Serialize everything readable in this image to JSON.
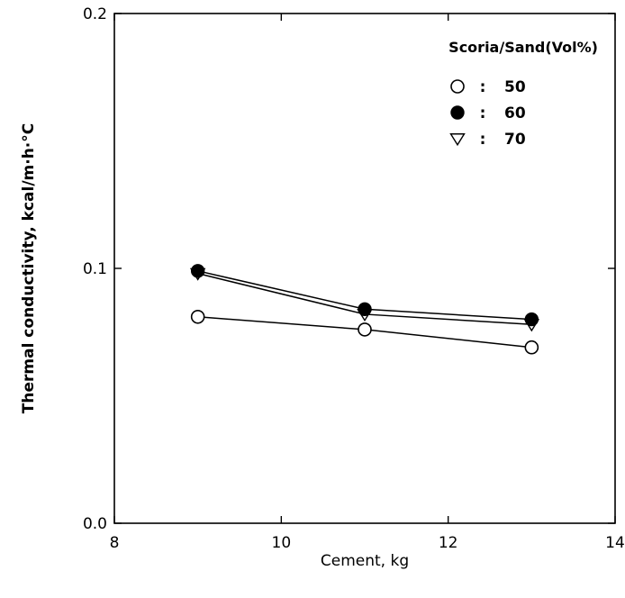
{
  "chart_data": {
    "type": "line",
    "xlabel": "Cement, kg",
    "ylabel": "Thermal conductivity, kcal/m·h·°C",
    "xlim": [
      8,
      14
    ],
    "ylim": [
      0.0,
      0.2
    ],
    "xticks": [
      8,
      10,
      12,
      14
    ],
    "yticks": [
      0.0,
      0.1,
      0.2
    ],
    "xtick_labels": [
      "8",
      "10",
      "12",
      "14"
    ],
    "ytick_labels": [
      "0.0",
      "0.1",
      "0.2"
    ],
    "grid": false,
    "legend": {
      "title": "Scoria/Sand(Vol%)",
      "placement": "top-right",
      "separator": ":"
    },
    "x": [
      9,
      11,
      13
    ],
    "series": [
      {
        "name": "50",
        "marker": "open-circle",
        "values": [
          0.081,
          0.076,
          0.069
        ]
      },
      {
        "name": "60",
        "marker": "filled-circle",
        "values": [
          0.099,
          0.084,
          0.08
        ]
      },
      {
        "name": "70",
        "marker": "open-triangle-down",
        "values": [
          0.098,
          0.082,
          0.078
        ]
      }
    ]
  }
}
